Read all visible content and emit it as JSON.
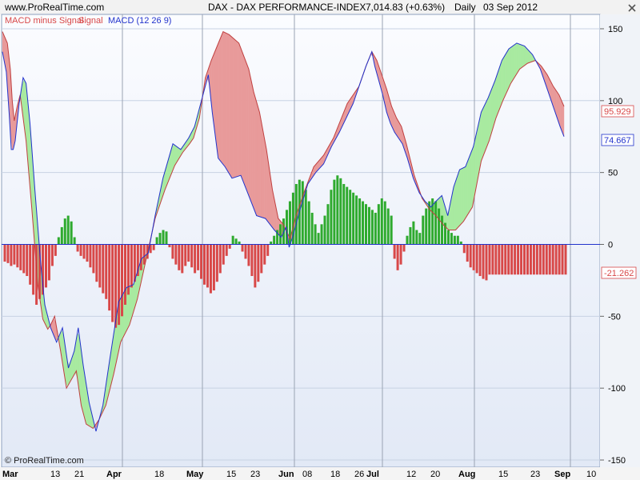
{
  "header": {
    "site": "www.ProRealTime.com",
    "title": "DAX - DAX PERFORMANCE-INDEX",
    "quote": "7,014.83 (+0.63%)",
    "period": "Daily",
    "date": "03 Sep 2012"
  },
  "legend": {
    "histogram_label": "MACD minus Signal",
    "signal_label": "Signal",
    "macd_label": "MACD (12 26 9)"
  },
  "footer": {
    "copyright": "© ProRealTime.com"
  },
  "colors": {
    "background_top": "#fbfcff",
    "background_bottom": "#e2e9f6",
    "positive": "#2eaa2e",
    "positive_fill": "#a8eaa0",
    "negative": "#d84848",
    "negative_fill": "#e89a9a",
    "macd_line": "#2233cc",
    "signal_line": "#c04040",
    "zero_line": "#2233cc"
  },
  "chart_data": {
    "type": "line",
    "title": "DAX - DAX PERFORMANCE-INDEX",
    "ylim": [
      -155,
      160
    ],
    "y_ticks": [
      150,
      100,
      50,
      0,
      -50,
      -100,
      -150
    ],
    "x_labels": [
      "Mar",
      "13",
      "21",
      "Apr",
      "18",
      "May",
      "15",
      "23",
      "Jun",
      "08",
      "18",
      "26",
      "Jul",
      "12",
      "20",
      "Aug",
      "15",
      "23",
      "Sep",
      "10"
    ],
    "month_separators": [
      "Mar",
      "Apr",
      "May",
      "Jun",
      "Jul",
      "Aug",
      "Sep"
    ],
    "last_values": {
      "signal": "95.929",
      "macd": "74.667",
      "histogram": "-21.262"
    },
    "x": [
      0,
      1,
      2,
      3,
      4,
      5,
      6,
      7,
      8,
      9,
      10,
      11,
      12,
      13,
      14,
      15,
      16,
      17,
      18,
      19,
      20,
      21,
      22,
      23,
      24,
      25,
      26,
      27,
      28,
      29,
      30,
      31,
      32,
      33,
      34,
      35,
      36,
      37,
      38,
      39,
      40,
      41,
      42,
      43,
      44,
      45,
      46,
      47,
      48,
      49,
      50,
      51,
      52,
      53,
      54,
      55,
      56,
      57,
      58,
      59,
      60,
      61,
      62,
      63,
      64,
      65,
      66,
      67,
      68,
      69,
      70,
      71,
      72,
      73,
      74,
      75,
      76,
      77,
      78,
      79,
      80,
      81,
      82,
      83,
      84,
      85,
      86,
      87,
      88,
      89,
      90,
      91,
      92,
      93,
      94,
      95,
      96,
      97,
      98,
      99,
      100,
      101,
      102,
      103,
      104,
      105,
      106,
      107,
      108,
      109,
      110,
      111,
      112,
      113,
      114,
      115,
      116,
      117,
      118,
      119,
      120,
      121,
      122,
      123,
      124,
      125,
      126,
      127,
      128,
      129,
      130,
      131,
      132,
      133,
      134,
      135,
      136,
      137,
      138,
      139,
      140,
      141,
      142,
      143,
      144,
      145,
      146,
      147,
      148,
      149,
      150,
      151,
      152,
      153,
      154,
      155,
      156,
      157,
      158,
      159,
      160,
      161,
      162,
      163,
      164,
      165,
      166,
      167,
      168,
      169,
      170,
      171,
      172,
      173,
      174,
      175,
      176,
      177
    ],
    "series": [
      {
        "name": "MACD minus Signal",
        "kind": "histogram",
        "values": [
          -12,
          -13,
          -15,
          -14,
          -16,
          -18,
          -20,
          -22,
          -28,
          -35,
          -42,
          -38,
          -35,
          -30,
          -25,
          -15,
          -8,
          5,
          12,
          18,
          20,
          16,
          5,
          -5,
          -8,
          -10,
          -12,
          -16,
          -20,
          -26,
          -30,
          -34,
          -38,
          -46,
          -54,
          -58,
          -56,
          -50,
          -42,
          -35,
          -30,
          -26,
          -22,
          -18,
          -14,
          -10,
          -6,
          -4,
          5,
          8,
          10,
          9,
          -2,
          -10,
          -14,
          -18,
          -20,
          -15,
          -12,
          -16,
          -20,
          -18,
          -24,
          -28,
          -30,
          -34,
          -32,
          -26,
          -20,
          -14,
          -8,
          -3,
          6,
          4,
          2,
          -5,
          -10,
          -15,
          -22,
          -30,
          -26,
          -20,
          -14,
          -8,
          2,
          6,
          10,
          14,
          18,
          24,
          30,
          36,
          42,
          45,
          44,
          38,
          30,
          22,
          14,
          8,
          14,
          20,
          28,
          38,
          45,
          48,
          46,
          42,
          40,
          38,
          36,
          34,
          32,
          30,
          28,
          26,
          24,
          22,
          28,
          32,
          30,
          25,
          20,
          -10,
          -18,
          -14,
          -5,
          6,
          12,
          16,
          10,
          8,
          20,
          25,
          30,
          32,
          30,
          25,
          20,
          15,
          10,
          8,
          6,
          6,
          2,
          -6,
          -12,
          -16,
          -18,
          -20,
          -22,
          -24,
          -25,
          -21,
          -21,
          -21,
          -21,
          -21,
          -21,
          -21,
          -21,
          -21,
          -21,
          -21,
          -21,
          -21,
          -21,
          -21,
          -21,
          -21,
          -21,
          -21,
          -21,
          -21,
          -21,
          -21,
          -21,
          -21
        ]
      },
      {
        "name": "Signal",
        "kind": "line",
        "values": [
          [
            0,
            148
          ],
          [
            10,
            140
          ],
          [
            16,
            122
          ],
          [
            20,
            100
          ],
          [
            24,
            86
          ],
          [
            30,
            96
          ],
          [
            36,
            104
          ],
          [
            48,
            72
          ],
          [
            60,
            24
          ],
          [
            72,
            -28
          ],
          [
            82,
            -52
          ],
          [
            92,
            -59
          ],
          [
            98,
            -56
          ],
          [
            106,
            -50
          ],
          [
            118,
            -74
          ],
          [
            130,
            -100
          ],
          [
            150,
            -88
          ],
          [
            160,
            -112
          ],
          [
            170,
            -125
          ],
          [
            184,
            -128
          ],
          [
            196,
            -122
          ],
          [
            210,
            -112
          ],
          [
            226,
            -90
          ],
          [
            240,
            -68
          ],
          [
            258,
            -56
          ],
          [
            274,
            -38
          ],
          [
            292,
            -10
          ],
          [
            310,
            18
          ],
          [
            330,
            38
          ],
          [
            350,
            55
          ],
          [
            366,
            64
          ],
          [
            380,
            70
          ],
          [
            388,
            74
          ],
          [
            400,
            88
          ],
          [
            412,
            116
          ],
          [
            424,
            128
          ],
          [
            436,
            138
          ],
          [
            448,
            148
          ],
          [
            460,
            146
          ],
          [
            480,
            140
          ],
          [
            500,
            122
          ],
          [
            510,
            106
          ],
          [
            522,
            92
          ],
          [
            536,
            66
          ],
          [
            548,
            38
          ],
          [
            560,
            18
          ],
          [
            570,
            14
          ],
          [
            584,
            4
          ],
          [
            596,
            20
          ],
          [
            612,
            36
          ],
          [
            632,
            54
          ],
          [
            652,
            62
          ],
          [
            672,
            74
          ],
          [
            686,
            86
          ],
          [
            700,
            98
          ],
          [
            712,
            104
          ],
          [
            724,
            110
          ],
          [
            738,
            124
          ],
          [
            750,
            134
          ],
          [
            760,
            128
          ],
          [
            770,
            118
          ],
          [
            780,
            108
          ],
          [
            790,
            96
          ],
          [
            800,
            88
          ],
          [
            810,
            82
          ],
          [
            820,
            70
          ],
          [
            836,
            48
          ],
          [
            852,
            32
          ],
          [
            868,
            24
          ],
          [
            880,
            20
          ],
          [
            894,
            14
          ],
          [
            906,
            10
          ],
          [
            920,
            10
          ],
          [
            936,
            16
          ],
          [
            954,
            26
          ],
          [
            972,
            58
          ],
          [
            988,
            72
          ],
          [
            1002,
            88
          ],
          [
            1016,
            100
          ],
          [
            1032,
            112
          ],
          [
            1050,
            122
          ],
          [
            1066,
            126
          ],
          [
            1082,
            128
          ],
          [
            1094,
            124
          ],
          [
            1106,
            118
          ],
          [
            1118,
            110
          ],
          [
            1130,
            104
          ],
          [
            1140,
            96
          ]
        ]
      },
      {
        "name": "MACD (12 26 9)",
        "kind": "line",
        "values": [
          [
            0,
            134
          ],
          [
            8,
            120
          ],
          [
            14,
            90
          ],
          [
            18,
            66
          ],
          [
            22,
            66
          ],
          [
            26,
            72
          ],
          [
            34,
            98
          ],
          [
            42,
            116
          ],
          [
            48,
            112
          ],
          [
            56,
            84
          ],
          [
            66,
            38
          ],
          [
            78,
            -14
          ],
          [
            86,
            -42
          ],
          [
            98,
            -58
          ],
          [
            110,
            -68
          ],
          [
            122,
            -58
          ],
          [
            134,
            -86
          ],
          [
            146,
            -74
          ],
          [
            154,
            -58
          ],
          [
            164,
            -84
          ],
          [
            176,
            -110
          ],
          [
            190,
            -130
          ],
          [
            204,
            -112
          ],
          [
            218,
            -80
          ],
          [
            236,
            -40
          ],
          [
            252,
            -30
          ],
          [
            266,
            -28
          ],
          [
            282,
            -10
          ],
          [
            296,
            -6
          ],
          [
            310,
            20
          ],
          [
            326,
            46
          ],
          [
            346,
            70
          ],
          [
            362,
            66
          ],
          [
            378,
            74
          ],
          [
            390,
            82
          ],
          [
            404,
            100
          ],
          [
            418,
            118
          ],
          [
            426,
            92
          ],
          [
            438,
            60
          ],
          [
            452,
            54
          ],
          [
            466,
            46
          ],
          [
            484,
            48
          ],
          [
            500,
            34
          ],
          [
            516,
            20
          ],
          [
            534,
            18
          ],
          [
            552,
            10
          ],
          [
            566,
            5
          ],
          [
            576,
            12
          ],
          [
            582,
            -2
          ],
          [
            590,
            6
          ],
          [
            604,
            24
          ],
          [
            620,
            42
          ],
          [
            636,
            50
          ],
          [
            652,
            56
          ],
          [
            668,
            68
          ],
          [
            684,
            78
          ],
          [
            698,
            88
          ],
          [
            712,
            98
          ],
          [
            724,
            110
          ],
          [
            738,
            124
          ],
          [
            750,
            134
          ],
          [
            756,
            124
          ],
          [
            764,
            114
          ],
          [
            772,
            104
          ],
          [
            780,
            92
          ],
          [
            788,
            84
          ],
          [
            796,
            78
          ],
          [
            804,
            74
          ],
          [
            812,
            70
          ],
          [
            822,
            60
          ],
          [
            834,
            46
          ],
          [
            846,
            36
          ],
          [
            858,
            30
          ],
          [
            870,
            26
          ],
          [
            880,
            30
          ],
          [
            892,
            34
          ],
          [
            904,
            20
          ],
          [
            916,
            40
          ],
          [
            928,
            52
          ],
          [
            940,
            54
          ],
          [
            956,
            68
          ],
          [
            972,
            92
          ],
          [
            986,
            102
          ],
          [
            1000,
            114
          ],
          [
            1014,
            128
          ],
          [
            1028,
            136
          ],
          [
            1044,
            140
          ],
          [
            1060,
            138
          ],
          [
            1076,
            132
          ],
          [
            1092,
            122
          ],
          [
            1106,
            108
          ],
          [
            1120,
            94
          ],
          [
            1132,
            82
          ],
          [
            1140,
            75
          ]
        ]
      }
    ]
  }
}
